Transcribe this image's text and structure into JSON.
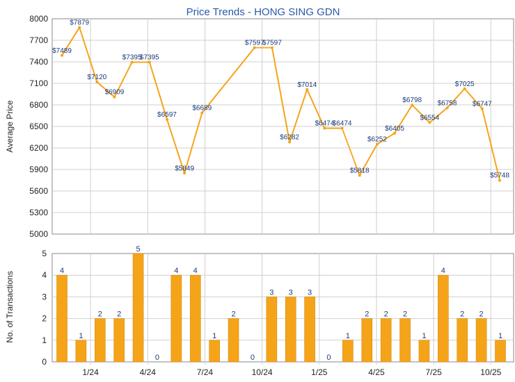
{
  "chart_data": [
    {
      "type": "line",
      "title": "Price Trends - HONG SING GDN",
      "ylabel": "Average Price",
      "ylim": [
        5000,
        8000
      ],
      "yticks": [
        5000,
        5300,
        5600,
        5900,
        6200,
        6500,
        6800,
        7100,
        7400,
        7700,
        8000
      ],
      "grid": true,
      "line_color": "#f5a41a",
      "dotted_segments": [
        [
          11,
          12
        ],
        [
          16,
          17
        ]
      ],
      "points": [
        {
          "label": "$7489",
          "y": 7489
        },
        {
          "label": "$7879",
          "y": 7879
        },
        {
          "label": "$7120",
          "y": 7120
        },
        {
          "label": "$6909",
          "y": 6909
        },
        {
          "label": "$7395",
          "y": 7395
        },
        {
          "label": "$7395",
          "y": 7395
        },
        {
          "label": "$6597",
          "y": 6597
        },
        {
          "label": "$5849",
          "y": 5849
        },
        {
          "label": "$6689",
          "y": 6689
        },
        {
          "label": "",
          "y": null
        },
        {
          "label": "",
          "y": null
        },
        {
          "label": "$7597",
          "y": 7597
        },
        {
          "label": "$7597",
          "y": 7597
        },
        {
          "label": "$6282",
          "y": 6282
        },
        {
          "label": "$7014",
          "y": 7014
        },
        {
          "label": "$6474",
          "y": 6474
        },
        {
          "label": "$6474",
          "y": 6474
        },
        {
          "label": "$5818",
          "y": 5818
        },
        {
          "label": "$6252",
          "y": 6252
        },
        {
          "label": "$6405",
          "y": 6405
        },
        {
          "label": "$6798",
          "y": 6798
        },
        {
          "label": "$6554",
          "y": 6554
        },
        {
          "label": "$6758",
          "y": 6758
        },
        {
          "label": "$7025",
          "y": 7025
        },
        {
          "label": "$6747",
          "y": 6747
        },
        {
          "label": "$5748",
          "y": 5748
        }
      ]
    },
    {
      "type": "bar",
      "ylabel": "No. of Transactions",
      "ylim": [
        0,
        5
      ],
      "yticks": [
        0,
        1,
        2,
        3,
        4,
        5
      ],
      "grid": true,
      "bar_color": "#f5a41a",
      "values": [
        4,
        1,
        2,
        2,
        5,
        0,
        4,
        4,
        1,
        2,
        0,
        3,
        3,
        3,
        0,
        1,
        2,
        2,
        2,
        1,
        4,
        2,
        2,
        1
      ],
      "xticks": [
        {
          "label": "1/24",
          "at": 1.5
        },
        {
          "label": "4/24",
          "at": 4.5
        },
        {
          "label": "7/24",
          "at": 7.5
        },
        {
          "label": "10/24",
          "at": 10.5
        },
        {
          "label": "1/25",
          "at": 13.5
        },
        {
          "label": "4/25",
          "at": 16.5
        },
        {
          "label": "7/25",
          "at": 19.5
        },
        {
          "label": "10/25",
          "at": 22.5
        }
      ]
    }
  ]
}
